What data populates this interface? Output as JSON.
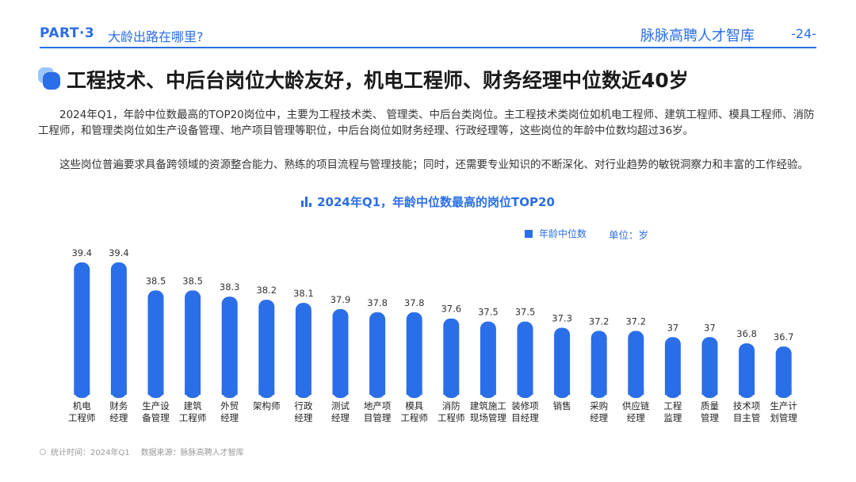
{
  "header": {
    "part": "PART·3",
    "part_title": "大龄出路在哪里?",
    "brand": "脉脉高聘人才智库",
    "page": "-24-"
  },
  "headline": "工程技术、中后台岗位大龄友好，机电工程师、财务经理中位数近40岁",
  "paragraphs": [
    "2024年Q1，年龄中位数最高的TOP20岗位中，主要为工程技术类、 管理类、中后台类岗位。主工程技术类岗位如机电工程师、建筑工程师、模具工程师、消防工程师，和管理类岗位如生产设备管理、地产项目管理等职位，中后台岗位如财务经理、行政经理等，这些岗位的年龄中位数均超过36岁。",
    "这些岗位普遍要求具备跨领域的资源整合能力、熟练的项目流程与管理技能；同时，还需要专业知识的不断深化、对行业趋势的敏锐洞察力和丰富的工作经验。"
  ],
  "legend_label": "年龄中位数",
  "unit_label": "单位：岁",
  "footer": {
    "stat_time": "统计时间：2024年Q1",
    "source": "数据来源：脉脉高聘人才智库"
  },
  "colors": {
    "accent": "#2a6ee8",
    "bar": "#2a6ee8"
  },
  "chart_data": {
    "type": "bar",
    "title": "2024年Q1，年龄中位数最高的岗位TOP20",
    "categories": [
      [
        "机电",
        "工程师"
      ],
      [
        "财务",
        "经理"
      ],
      [
        "生产设",
        "备管理"
      ],
      [
        "建筑",
        "工程师"
      ],
      [
        "外贸",
        "经理"
      ],
      [
        "架构师"
      ],
      [
        "行政",
        "经理"
      ],
      [
        "测试",
        "经理"
      ],
      [
        "地产项",
        "目管理"
      ],
      [
        "模具",
        "工程师"
      ],
      [
        "消防",
        "工程师"
      ],
      [
        "建筑施工",
        "现场管理"
      ],
      [
        "装修项",
        "目经理"
      ],
      [
        "销售"
      ],
      [
        "采购",
        "经理"
      ],
      [
        "供应链",
        "经理"
      ],
      [
        "工程",
        "监理"
      ],
      [
        "质量",
        "管理"
      ],
      [
        "技术项",
        "目主管"
      ],
      [
        "生产计",
        "划管理"
      ]
    ],
    "values": [
      39.4,
      39.4,
      38.5,
      38.5,
      38.3,
      38.2,
      38.1,
      37.9,
      37.8,
      37.8,
      37.6,
      37.5,
      37.5,
      37.3,
      37.2,
      37.2,
      37,
      37,
      36.8,
      36.7
    ],
    "value_labels": [
      "39.4",
      "39.4",
      "38.5",
      "38.5",
      "38.3",
      "38.2",
      "38.1",
      "37.9",
      "37.8",
      "37.8",
      "37.6",
      "37.5",
      "37.5",
      "37.3",
      "37.2",
      "37.2",
      "37",
      "37",
      "36.8",
      "36.7"
    ],
    "series": [
      {
        "name": "年龄中位数"
      }
    ],
    "legend": "top-right",
    "grid": false
  }
}
